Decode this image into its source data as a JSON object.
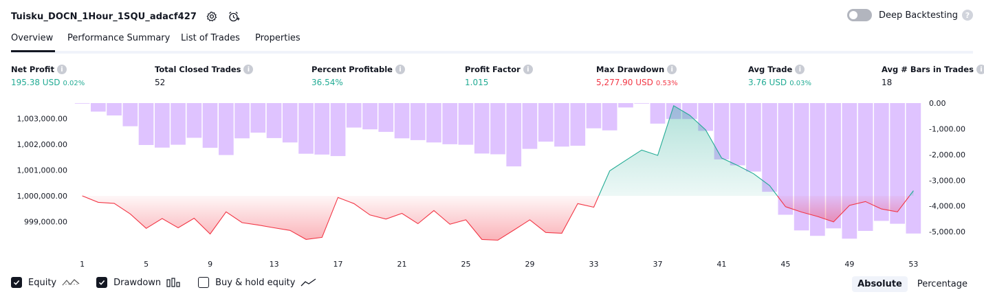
{
  "header": {
    "strategy_name": "Tuisku_DOCN_1Hour_1SQU_adacf427",
    "settings_icon": "gear-icon",
    "alert_icon": "alarm-plus-icon",
    "deep_backtesting_label": "Deep Backtesting",
    "deep_backtesting_on": false
  },
  "tabs": [
    {
      "label": "Overview",
      "active": true
    },
    {
      "label": "Performance Summary",
      "active": false
    },
    {
      "label": "List of Trades",
      "active": false
    },
    {
      "label": "Properties",
      "active": false
    }
  ],
  "metrics": [
    {
      "label": "Net Profit",
      "value": "195.38 USD",
      "percent": "0.02%",
      "color": "green"
    },
    {
      "label": "Total Closed Trades",
      "value": "52",
      "percent": "",
      "color": "dark"
    },
    {
      "label": "Percent Profitable",
      "value": "36.54%",
      "percent": "",
      "color": "green"
    },
    {
      "label": "Profit Factor",
      "value": "1.015",
      "percent": "",
      "color": "green"
    },
    {
      "label": "Max Drawdown",
      "value": "5,277.90 USD",
      "percent": "0.53%",
      "color": "red"
    },
    {
      "label": "Avg Trade",
      "value": "3.76 USD",
      "percent": "0.03%",
      "color": "green"
    },
    {
      "label": "Avg # Bars in Trades",
      "value": "18",
      "percent": "",
      "color": "dark"
    }
  ],
  "chart_data": {
    "type": "line",
    "x": [
      1,
      2,
      3,
      4,
      5,
      6,
      7,
      8,
      9,
      10,
      11,
      12,
      13,
      14,
      15,
      16,
      17,
      18,
      19,
      20,
      21,
      22,
      23,
      24,
      25,
      26,
      27,
      28,
      29,
      30,
      31,
      32,
      33,
      34,
      35,
      36,
      37,
      38,
      39,
      40,
      41,
      42,
      43,
      44,
      45,
      46,
      47,
      48,
      49,
      50,
      51,
      52,
      53
    ],
    "x_ticks": [
      "1",
      "5",
      "9",
      "13",
      "17",
      "21",
      "25",
      "29",
      "33",
      "37",
      "41",
      "45",
      "49",
      "53"
    ],
    "series": [
      {
        "name": "Equity",
        "axis": "left",
        "values": [
          1000000,
          999750,
          999710,
          999300,
          998740,
          999120,
          998760,
          999130,
          998520,
          999380,
          998960,
          998870,
          998760,
          998660,
          998310,
          998390,
          999940,
          999700,
          999260,
          999100,
          999320,
          998920,
          999430,
          998900,
          999070,
          998310,
          998280,
          998670,
          999070,
          998580,
          998550,
          999700,
          999560,
          1000970,
          1001380,
          1001780,
          1001570,
          1003500,
          1003130,
          1002560,
          1001470,
          1001180,
          1000860,
          1000400,
          999580,
          999370,
          999200,
          998990,
          999630,
          999780,
          999490,
          999380,
          1000200
        ]
      },
      {
        "name": "Drawdown",
        "axis": "right",
        "values": [
          0,
          -330,
          -480,
          -900,
          -1630,
          -1730,
          -1620,
          -1350,
          -1740,
          -2020,
          -1370,
          -1150,
          -1360,
          -1530,
          -1970,
          -2000,
          -2060,
          -950,
          -1020,
          -1120,
          -1370,
          -1440,
          -1530,
          -1600,
          -1620,
          -1960,
          -1990,
          -2460,
          -1780,
          -1500,
          -1690,
          -1660,
          -980,
          -1060,
          -170,
          0,
          -800,
          -620,
          -620,
          -1080,
          -2190,
          -2420,
          -2660,
          -3450,
          -4340,
          -4950,
          -5160,
          -4870,
          -5270,
          -4970,
          -4580,
          -4690,
          -5070
        ]
      }
    ],
    "left_axis_ticks": [
      "1,003,000.00",
      "1,002,000.00",
      "1,001,000.00",
      "1,000,000.00",
      "999,000.00"
    ],
    "left_axis_values": [
      1003000,
      1002000,
      1001000,
      1000000,
      999000
    ],
    "right_axis_ticks": [
      "0.00",
      "-1,000.00",
      "-2,000.00",
      "-3,000.00",
      "-4,000.00",
      "-5,000.00"
    ],
    "right_axis_values": [
      0,
      -1000,
      -2000,
      -3000,
      -4000,
      -5000
    ],
    "left_range": [
      998000,
      1003600
    ],
    "right_range": [
      -5610,
      0
    ],
    "baseline": 1000000,
    "colors": {
      "drawdown": "#d9b8ff",
      "equity_up": "#22ab94",
      "equity_down": "#f23645"
    }
  },
  "legend": [
    {
      "label": "Equity",
      "checked": true,
      "icon": "equity-line-icon"
    },
    {
      "label": "Drawdown",
      "checked": true,
      "icon": "drawdown-bars-icon"
    },
    {
      "label": "Buy & hold equity",
      "checked": false,
      "icon": "buy-hold-line-icon"
    }
  ],
  "view_modes": [
    {
      "label": "Absolute",
      "active": true
    },
    {
      "label": "Percentage",
      "active": false
    }
  ]
}
